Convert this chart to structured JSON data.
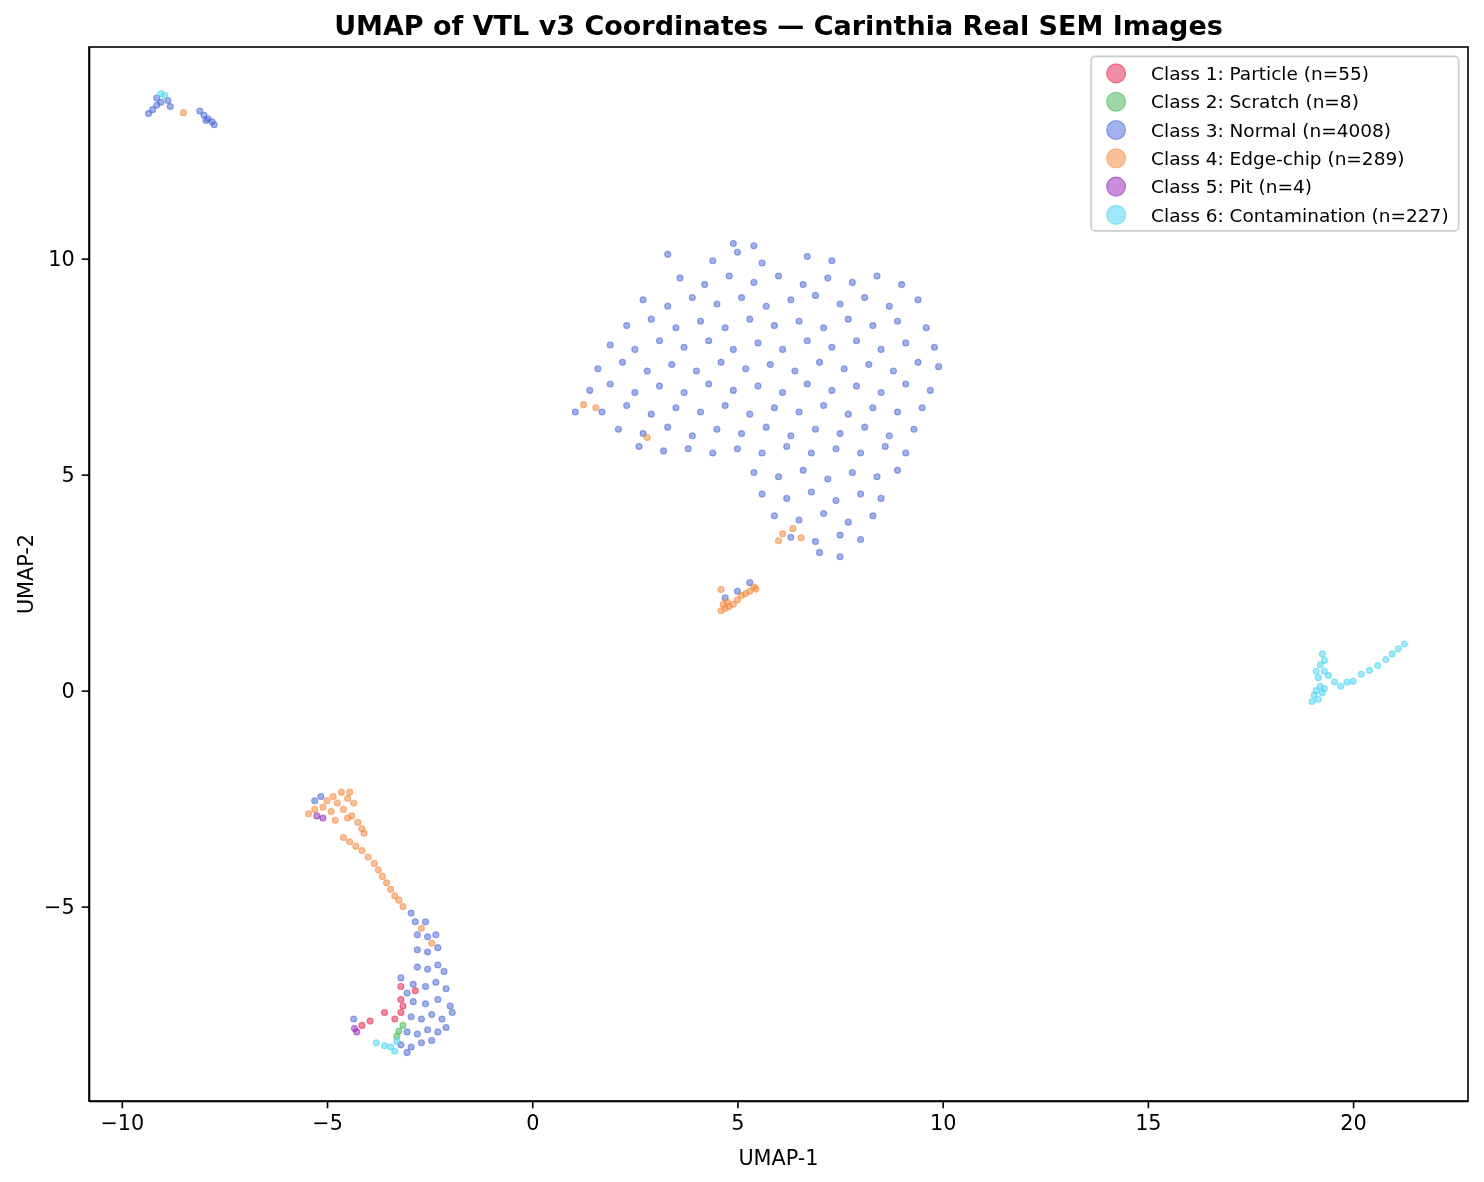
{
  "chart_data": {
    "type": "scatter",
    "title": "UMAP of VTL v3 Coordinates — Carinthia Real SEM Images",
    "xlabel": "UMAP-1",
    "ylabel": "UMAP-2",
    "xlim": [
      -10.8,
      22.8
    ],
    "ylim": [
      -9.5,
      14.9
    ],
    "xticks": [
      {
        "value": -10,
        "label": "−10"
      },
      {
        "value": -5,
        "label": "−5"
      },
      0,
      5,
      10,
      15,
      20
    ],
    "yticks": [
      {
        "value": -5,
        "label": "−5"
      },
      0,
      5,
      10
    ],
    "legend": "top right",
    "marker": "circle",
    "series": [
      {
        "name": "Class 1: Particle (n=55)",
        "color": "#e6194b",
        "x": [
          -3.6,
          -3.95,
          -4.15,
          -3.2,
          -3.2,
          -2.85,
          -3.2,
          -3.35,
          -3.15
        ],
        "values": [
          -7.45,
          -7.65,
          -7.75,
          -7.45,
          -6.85,
          -6.95,
          -7.15,
          -7.6,
          -7.3
        ]
      },
      {
        "name": "Class 2: Scratch (n=8)",
        "color": "#3cb44b",
        "x": [
          -3.15,
          -3.25,
          -3.3
        ],
        "values": [
          -7.75,
          -7.88,
          -8.0
        ]
      },
      {
        "name": "Class 3: Normal (n=4008)",
        "color": "#4363d8",
        "x": [
          -9.35,
          -9.25,
          -9.15,
          -9.05,
          -8.88,
          -8.82,
          -9.15,
          -8.1,
          -8.0,
          -7.9,
          -7.8,
          -7.75,
          -7.95,
          4.9,
          5.4,
          3.3,
          4.4,
          5.0,
          5.6,
          6.7,
          7.3,
          3.6,
          4.2,
          4.8,
          5.4,
          6.0,
          6.6,
          7.2,
          7.8,
          8.4,
          9.0,
          2.7,
          3.3,
          3.9,
          4.5,
          5.1,
          5.7,
          6.3,
          6.9,
          7.5,
          8.1,
          8.7,
          9.4,
          2.3,
          2.9,
          3.5,
          4.1,
          4.7,
          5.3,
          5.9,
          6.5,
          7.1,
          7.7,
          8.3,
          8.9,
          9.6,
          1.9,
          2.5,
          3.1,
          3.7,
          4.3,
          4.9,
          5.5,
          6.1,
          6.7,
          7.3,
          7.9,
          8.5,
          9.1,
          9.8,
          1.6,
          2.2,
          2.8,
          3.4,
          4.0,
          4.6,
          5.2,
          5.8,
          6.4,
          7.0,
          7.6,
          8.2,
          8.8,
          9.4,
          9.9,
          1.4,
          1.9,
          2.5,
          3.1,
          3.7,
          4.3,
          4.9,
          5.5,
          6.1,
          6.7,
          7.3,
          7.9,
          8.5,
          9.1,
          9.7,
          1.05,
          1.7,
          2.3,
          2.9,
          3.5,
          4.1,
          4.7,
          5.3,
          5.9,
          6.5,
          7.1,
          7.7,
          8.3,
          8.9,
          9.5,
          2.1,
          2.7,
          3.3,
          3.9,
          4.5,
          5.1,
          5.7,
          6.3,
          6.9,
          7.5,
          8.1,
          8.7,
          9.3,
          2.6,
          3.2,
          3.8,
          4.4,
          5.0,
          5.6,
          6.2,
          6.8,
          7.4,
          8.0,
          8.6,
          9.1,
          5.4,
          6.0,
          6.6,
          7.2,
          7.8,
          8.4,
          8.9,
          5.6,
          6.2,
          6.8,
          7.4,
          8.0,
          8.5,
          5.9,
          6.5,
          7.1,
          7.7,
          8.3,
          6.3,
          6.9,
          7.5,
          8.0,
          7.0,
          7.5,
          4.7,
          5.0,
          5.3,
          -5.3,
          -5.15,
          -2.95,
          -2.85,
          -2.6,
          -2.8,
          -2.55,
          -2.35,
          -2.8,
          -2.55,
          -2.3,
          -2.8,
          -2.55,
          -2.3,
          -2.15,
          -2.9,
          -2.6,
          -2.35,
          -2.1,
          -2.9,
          -2.6,
          -2.3,
          -2.0,
          -2.95,
          -2.7,
          -2.45,
          -2.2,
          -1.95,
          -3.05,
          -2.8,
          -2.55,
          -2.3,
          -2.1,
          -3.2,
          -2.95,
          -2.7,
          -2.45,
          -3.05,
          -3.2,
          -3.05,
          -4.35
        ],
        "values": [
          13.36,
          13.45,
          13.55,
          13.62,
          13.66,
          13.52,
          13.72,
          13.42,
          13.32,
          13.24,
          13.17,
          13.1,
          13.2,
          10.35,
          10.3,
          10.1,
          9.95,
          10.15,
          9.9,
          10.05,
          9.95,
          9.55,
          9.4,
          9.6,
          9.45,
          9.6,
          9.4,
          9.55,
          9.45,
          9.6,
          9.4,
          9.05,
          8.9,
          9.1,
          8.95,
          9.1,
          8.9,
          9.05,
          9.15,
          8.95,
          9.1,
          8.9,
          9.05,
          8.45,
          8.6,
          8.4,
          8.55,
          8.4,
          8.6,
          8.45,
          8.55,
          8.4,
          8.6,
          8.45,
          8.55,
          8.4,
          8.0,
          7.9,
          8.1,
          7.95,
          8.1,
          7.9,
          8.05,
          7.9,
          8.1,
          7.95,
          8.1,
          7.9,
          8.05,
          7.95,
          7.45,
          7.6,
          7.4,
          7.55,
          7.4,
          7.6,
          7.45,
          7.55,
          7.4,
          7.6,
          7.45,
          7.55,
          7.4,
          7.6,
          7.5,
          6.95,
          7.1,
          6.9,
          7.05,
          6.9,
          7.1,
          6.95,
          7.05,
          6.9,
          7.1,
          6.95,
          7.05,
          6.9,
          7.1,
          6.95,
          6.45,
          6.45,
          6.6,
          6.4,
          6.55,
          6.45,
          6.6,
          6.4,
          6.55,
          6.45,
          6.6,
          6.4,
          6.55,
          6.45,
          6.55,
          6.05,
          5.95,
          6.1,
          5.9,
          6.05,
          5.95,
          6.1,
          5.9,
          6.05,
          5.95,
          6.1,
          5.9,
          6.05,
          5.65,
          5.55,
          5.6,
          5.5,
          5.6,
          5.5,
          5.65,
          5.5,
          5.6,
          5.5,
          5.65,
          5.5,
          5.05,
          4.95,
          5.1,
          4.9,
          5.05,
          4.95,
          5.1,
          4.55,
          4.45,
          4.6,
          4.4,
          4.55,
          4.45,
          4.05,
          3.95,
          4.1,
          3.9,
          4.05,
          3.55,
          3.45,
          3.6,
          3.5,
          3.2,
          3.1,
          2.15,
          2.3,
          2.5,
          -2.55,
          -2.45,
          -5.15,
          -5.35,
          -5.35,
          -5.65,
          -5.7,
          -5.65,
          -6.0,
          -6.05,
          -5.95,
          -6.4,
          -6.45,
          -6.35,
          -6.5,
          -6.8,
          -6.85,
          -6.75,
          -6.9,
          -7.2,
          -7.25,
          -7.15,
          -7.3,
          -7.55,
          -7.6,
          -7.5,
          -7.6,
          -7.45,
          -7.9,
          -7.95,
          -7.85,
          -7.9,
          -7.8,
          -8.2,
          -8.25,
          -8.15,
          -8.1,
          -8.38,
          -6.65,
          -7.0,
          -7.6
        ]
      },
      {
        "name": "Class 4: Edge-chip (n=289)",
        "color": "#f58231",
        "x": [
          -8.5,
          1.25,
          1.55,
          2.8,
          6.1,
          6.35,
          6.55,
          6.0,
          4.6,
          4.6,
          4.7,
          4.8,
          4.9,
          4.75,
          5.0,
          5.1,
          5.2,
          5.3,
          5.4,
          5.45,
          4.65,
          -5.45,
          -5.3,
          -5.1,
          -5.0,
          -4.9,
          -4.85,
          -4.75,
          -4.65,
          -4.6,
          -4.5,
          -4.45,
          -4.35,
          -4.4,
          -4.25,
          -4.15,
          -4.1,
          -4.5,
          -4.8,
          -4.6,
          -4.45,
          -4.3,
          -4.15,
          -4.0,
          -3.85,
          -3.75,
          -3.65,
          -3.55,
          -3.45,
          -3.35,
          -3.25,
          -3.15,
          -2.7,
          -2.45
        ],
        "values": [
          13.38,
          6.62,
          6.55,
          5.86,
          3.63,
          3.75,
          3.54,
          3.47,
          2.34,
          1.85,
          1.9,
          1.95,
          2.0,
          2.05,
          2.1,
          2.2,
          2.25,
          2.3,
          2.4,
          2.35,
          2.0,
          -2.85,
          -2.75,
          -2.7,
          -2.55,
          -2.8,
          -2.45,
          -2.6,
          -2.35,
          -2.75,
          -2.5,
          -2.35,
          -2.6,
          -2.9,
          -3.05,
          -3.2,
          -3.3,
          -2.95,
          -3.0,
          -3.4,
          -3.5,
          -3.6,
          -3.7,
          -3.85,
          -4.0,
          -4.15,
          -4.3,
          -4.45,
          -4.6,
          -4.75,
          -4.85,
          -5.0,
          -5.5,
          -5.85
        ]
      },
      {
        "name": "Class 5: Pit (n=4)",
        "color": "#911eb4",
        "x": [
          -5.25,
          -5.1,
          -4.28,
          -4.33
        ],
        "values": [
          -2.9,
          -2.95,
          -7.9,
          -7.82
        ]
      },
      {
        "name": "Class 6: Contamination (n=227)",
        "color": "#42d4f4",
        "x": [
          -9.05,
          -8.95,
          -3.8,
          -3.6,
          -3.45,
          -3.3,
          -3.35,
          19.0,
          19.05,
          19.15,
          19.1,
          19.25,
          19.2,
          19.3,
          19.15,
          19.1,
          19.3,
          19.2,
          19.3,
          19.25,
          19.4,
          19.55,
          19.7,
          19.85,
          20.0,
          20.2,
          20.4,
          20.6,
          20.8,
          20.95,
          21.1,
          21.25
        ],
        "values": [
          13.82,
          13.78,
          -8.15,
          -8.22,
          -8.25,
          -8.12,
          -8.35,
          -0.25,
          -0.1,
          -0.2,
          0.0,
          -0.05,
          0.1,
          0.05,
          0.3,
          0.45,
          0.45,
          0.6,
          0.7,
          0.85,
          0.35,
          0.2,
          0.1,
          0.2,
          0.22,
          0.38,
          0.47,
          0.58,
          0.72,
          0.85,
          0.97,
          1.08
        ]
      }
    ]
  }
}
